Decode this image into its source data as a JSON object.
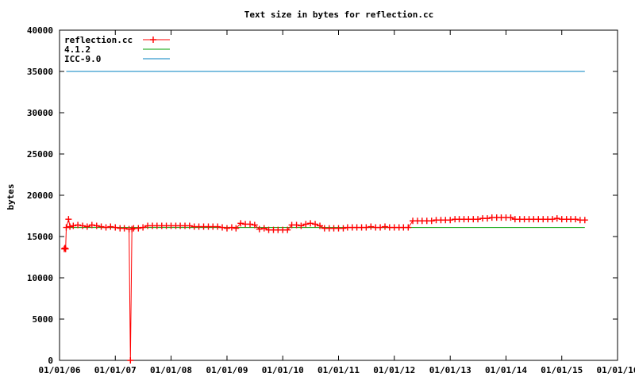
{
  "chart_data": {
    "type": "line",
    "title": "Text size in bytes for reflection.cc",
    "xlabel": "",
    "ylabel": "bytes",
    "x_tick_labels": [
      "01/01/06",
      "01/01/07",
      "01/01/08",
      "01/01/09",
      "01/01/10",
      "01/01/11",
      "01/01/12",
      "01/01/13",
      "01/01/14",
      "01/01/15",
      "01/01/16"
    ],
    "y_tick_labels": [
      "0",
      "5000",
      "10000",
      "15000",
      "20000",
      "25000",
      "30000",
      "35000",
      "40000"
    ],
    "xlim": [
      "2006-01-01",
      "2016-01-01"
    ],
    "ylim": [
      0,
      40000
    ],
    "grid": false,
    "legend_position": "top-left",
    "series": [
      {
        "name": "reflection.cc",
        "color": "#ff0000",
        "marker": "plus",
        "points": [
          [
            "2006-02-01",
            13500
          ],
          [
            "2006-02-05",
            13600
          ],
          [
            "2006-02-10",
            13500
          ],
          [
            "2006-02-14",
            16100
          ],
          [
            "2006-03-01",
            17100
          ],
          [
            "2006-03-10",
            16200
          ],
          [
            "2006-04-01",
            16300
          ],
          [
            "2006-05-01",
            16400
          ],
          [
            "2006-06-01",
            16300
          ],
          [
            "2006-07-01",
            16200
          ],
          [
            "2006-08-01",
            16400
          ],
          [
            "2006-09-01",
            16300
          ],
          [
            "2006-10-01",
            16200
          ],
          [
            "2006-11-01",
            16100
          ],
          [
            "2006-12-01",
            16200
          ],
          [
            "2007-01-01",
            16100
          ],
          [
            "2007-02-01",
            16000
          ],
          [
            "2007-03-01",
            16000
          ],
          [
            "2007-04-01",
            15900
          ],
          [
            "2007-04-10",
            0
          ],
          [
            "2007-04-20",
            15900
          ],
          [
            "2007-05-01",
            16000
          ],
          [
            "2007-06-01",
            16000
          ],
          [
            "2007-07-01",
            16100
          ],
          [
            "2007-08-01",
            16300
          ],
          [
            "2007-09-01",
            16300
          ],
          [
            "2007-10-01",
            16300
          ],
          [
            "2007-11-01",
            16300
          ],
          [
            "2007-12-01",
            16300
          ],
          [
            "2008-01-01",
            16300
          ],
          [
            "2008-02-01",
            16300
          ],
          [
            "2008-03-01",
            16300
          ],
          [
            "2008-04-01",
            16300
          ],
          [
            "2008-05-01",
            16300
          ],
          [
            "2008-06-01",
            16200
          ],
          [
            "2008-07-01",
            16200
          ],
          [
            "2008-08-01",
            16200
          ],
          [
            "2008-09-01",
            16200
          ],
          [
            "2008-10-01",
            16200
          ],
          [
            "2008-11-01",
            16200
          ],
          [
            "2008-12-01",
            16100
          ],
          [
            "2009-01-01",
            16000
          ],
          [
            "2009-02-01",
            16100
          ],
          [
            "2009-03-01",
            16000
          ],
          [
            "2009-04-01",
            16600
          ],
          [
            "2009-05-01",
            16500
          ],
          [
            "2009-06-01",
            16500
          ],
          [
            "2009-07-01",
            16400
          ],
          [
            "2009-08-01",
            15900
          ],
          [
            "2009-09-01",
            16000
          ],
          [
            "2009-10-01",
            15800
          ],
          [
            "2009-11-01",
            15800
          ],
          [
            "2009-12-01",
            15800
          ],
          [
            "2010-01-01",
            15800
          ],
          [
            "2010-02-01",
            15800
          ],
          [
            "2010-03-01",
            16400
          ],
          [
            "2010-04-01",
            16400
          ],
          [
            "2010-05-01",
            16300
          ],
          [
            "2010-06-01",
            16500
          ],
          [
            "2010-07-01",
            16600
          ],
          [
            "2010-08-01",
            16500
          ],
          [
            "2010-09-01",
            16300
          ],
          [
            "2010-10-01",
            16000
          ],
          [
            "2010-11-01",
            16000
          ],
          [
            "2010-12-01",
            16000
          ],
          [
            "2011-01-01",
            16000
          ],
          [
            "2011-02-01",
            16000
          ],
          [
            "2011-03-01",
            16100
          ],
          [
            "2011-04-01",
            16100
          ],
          [
            "2011-05-01",
            16100
          ],
          [
            "2011-06-01",
            16100
          ],
          [
            "2011-07-01",
            16100
          ],
          [
            "2011-08-01",
            16200
          ],
          [
            "2011-09-01",
            16100
          ],
          [
            "2011-10-01",
            16100
          ],
          [
            "2011-11-01",
            16200
          ],
          [
            "2011-12-01",
            16100
          ],
          [
            "2012-01-01",
            16100
          ],
          [
            "2012-02-01",
            16100
          ],
          [
            "2012-03-01",
            16100
          ],
          [
            "2012-04-01",
            16100
          ],
          [
            "2012-05-01",
            16900
          ],
          [
            "2012-06-01",
            16900
          ],
          [
            "2012-07-01",
            16900
          ],
          [
            "2012-08-01",
            16900
          ],
          [
            "2012-09-01",
            16900
          ],
          [
            "2012-10-01",
            17000
          ],
          [
            "2012-11-01",
            17000
          ],
          [
            "2012-12-01",
            17000
          ],
          [
            "2013-01-01",
            17000
          ],
          [
            "2013-02-01",
            17100
          ],
          [
            "2013-03-01",
            17100
          ],
          [
            "2013-04-01",
            17100
          ],
          [
            "2013-05-01",
            17100
          ],
          [
            "2013-06-01",
            17100
          ],
          [
            "2013-07-01",
            17100
          ],
          [
            "2013-08-01",
            17200
          ],
          [
            "2013-09-01",
            17200
          ],
          [
            "2013-10-01",
            17300
          ],
          [
            "2013-11-01",
            17300
          ],
          [
            "2013-12-01",
            17300
          ],
          [
            "2014-01-01",
            17300
          ],
          [
            "2014-02-01",
            17300
          ],
          [
            "2014-03-01",
            17100
          ],
          [
            "2014-04-01",
            17100
          ],
          [
            "2014-05-01",
            17100
          ],
          [
            "2014-06-01",
            17100
          ],
          [
            "2014-07-01",
            17100
          ],
          [
            "2014-08-01",
            17100
          ],
          [
            "2014-09-01",
            17100
          ],
          [
            "2014-10-01",
            17100
          ],
          [
            "2014-11-01",
            17100
          ],
          [
            "2014-12-01",
            17200
          ],
          [
            "2015-01-01",
            17100
          ],
          [
            "2015-02-01",
            17100
          ],
          [
            "2015-03-01",
            17100
          ],
          [
            "2015-04-01",
            17100
          ],
          [
            "2015-05-01",
            17000
          ],
          [
            "2015-06-01",
            17000
          ]
        ]
      },
      {
        "name": "4.1.2",
        "color": "#00a000",
        "marker": "none",
        "points": [
          [
            "2006-02-14",
            16100
          ],
          [
            "2015-06-01",
            16100
          ]
        ]
      },
      {
        "name": "ICC-9.0",
        "color": "#0080c0",
        "marker": "none",
        "points": [
          [
            "2006-02-14",
            35000
          ],
          [
            "2015-06-01",
            35000
          ]
        ]
      }
    ]
  }
}
